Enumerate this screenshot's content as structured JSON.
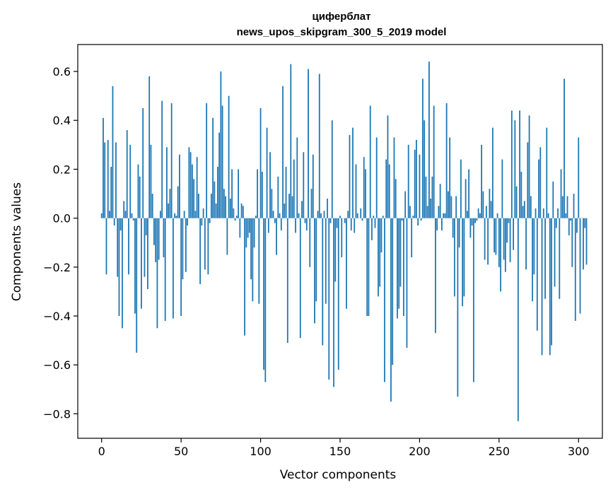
{
  "chart_data": {
    "type": "bar",
    "title": "циферблат",
    "subtitle": "news_upos_skipgram_300_5_2019 model",
    "xlabel": "Vector components",
    "ylabel": "Components values",
    "xlim": [
      -15,
      315
    ],
    "ylim": [
      -0.9,
      0.71
    ],
    "x_ticks": [
      0,
      50,
      100,
      150,
      200,
      250,
      300
    ],
    "x_tick_labels": [
      "0",
      "50",
      "100",
      "150",
      "200",
      "250",
      "300"
    ],
    "y_ticks": [
      -0.8,
      -0.6,
      -0.4,
      -0.2,
      0.0,
      0.2,
      0.4,
      0.6
    ],
    "y_tick_labels": [
      "−0.8",
      "−0.6",
      "−0.4",
      "−0.2",
      "0.0",
      "0.2",
      "0.4",
      "0.6"
    ],
    "bar_color": "#1f77b4",
    "grid": false,
    "values": [
      0.02,
      0.41,
      0.31,
      -0.23,
      0.32,
      0.03,
      0.21,
      0.54,
      -0.03,
      0.31,
      -0.24,
      -0.4,
      -0.05,
      -0.45,
      0.07,
      0.03,
      0.36,
      -0.23,
      0.3,
      0.02,
      -0.01,
      -0.39,
      -0.55,
      0.22,
      0.17,
      -0.37,
      0.45,
      -0.24,
      -0.07,
      -0.29,
      0.58,
      0.3,
      0.1,
      -0.11,
      -0.18,
      -0.45,
      -0.17,
      0.03,
      0.48,
      -0.16,
      -0.42,
      0.29,
      0.06,
      0.12,
      0.47,
      -0.41,
      0.02,
      0.01,
      0.13,
      0.26,
      -0.4,
      -0.25,
      0.03,
      -0.22,
      -0.03,
      0.29,
      0.27,
      0.22,
      0.16,
      0.03,
      0.25,
      0.1,
      -0.27,
      -0.03,
      0.04,
      -0.21,
      0.47,
      -0.23,
      -0.02,
      0.1,
      0.41,
      0.15,
      0.06,
      0.21,
      0.35,
      0.6,
      0.46,
      0.12,
      0.09,
      -0.15,
      0.5,
      0.08,
      0.2,
      0.04,
      -0.01,
      0.01,
      0.2,
      -0.08,
      0.06,
      0.05,
      -0.48,
      -0.12,
      -0.08,
      -0.06,
      -0.25,
      -0.34,
      -0.12,
      0.01,
      0.2,
      -0.35,
      0.45,
      0.19,
      -0.62,
      -0.67,
      0.37,
      -0.06,
      0.27,
      0.12,
      0.03,
      -0.02,
      -0.15,
      0.17,
      0.02,
      -0.05,
      0.54,
      0.06,
      0.21,
      -0.51,
      0.1,
      0.63,
      0.09,
      0.24,
      -0.06,
      0.33,
      0.02,
      -0.49,
      0.07,
      0.27,
      -0.02,
      -0.05,
      0.61,
      -0.2,
      0.12,
      0.26,
      -0.43,
      -0.34,
      0.03,
      0.59,
      0.02,
      -0.52,
      0.03,
      -0.35,
      0.08,
      -0.66,
      -0.02,
      0.4,
      -0.69,
      -0.26,
      -0.04,
      -0.62,
      0.01,
      -0.16,
      0.0,
      -0.02,
      -0.37,
      0.03,
      0.34,
      -0.05,
      0.37,
      -0.06,
      0.22,
      0.02,
      0.0,
      0.04,
      -0.01,
      0.25,
      0.2,
      -0.4,
      -0.4,
      0.46,
      -0.09,
      0.01,
      -0.04,
      0.33,
      -0.32,
      -0.28,
      -0.14,
      0.01,
      -0.67,
      0.24,
      0.42,
      0.22,
      -0.75,
      -0.6,
      0.33,
      0.16,
      -0.41,
      -0.37,
      -0.28,
      -0.01,
      -0.4,
      0.11,
      -0.53,
      0.3,
      0.05,
      -0.16,
      0.01,
      0.28,
      0.32,
      -0.03,
      0.26,
      -0.01,
      0.57,
      0.4,
      0.17,
      0.05,
      0.64,
      0.08,
      0.17,
      0.46,
      -0.47,
      -0.05,
      0.05,
      0.14,
      -0.05,
      0.02,
      0.02,
      0.47,
      0.11,
      0.33,
      0.09,
      -0.08,
      -0.32,
      0.09,
      -0.73,
      -0.12,
      0.24,
      -0.36,
      -0.32,
      0.16,
      0.03,
      0.2,
      -0.08,
      -0.03,
      -0.67,
      -0.02,
      -0.01,
      0.04,
      0.02,
      0.3,
      0.11,
      -0.17,
      0.05,
      -0.19,
      0.12,
      0.07,
      0.37,
      -0.14,
      -0.15,
      0.02,
      -0.2,
      -0.3,
      0.24,
      -0.17,
      -0.22,
      -0.1,
      -0.02,
      -0.18,
      0.44,
      -0.13,
      0.4,
      0.13,
      -0.83,
      0.44,
      0.19,
      0.05,
      0.07,
      -0.21,
      0.31,
      0.42,
      0.09,
      -0.34,
      -0.23,
      0.04,
      -0.46,
      0.24,
      0.29,
      -0.56,
      0.04,
      -0.33,
      0.37,
      0.02,
      -0.56,
      -0.52,
      0.15,
      -0.28,
      -0.04,
      0.04,
      -0.33,
      0.2,
      0.09,
      0.57,
      0.02,
      0.09,
      -0.07,
      -0.01,
      -0.2,
      0.1,
      -0.42,
      -0.06,
      0.33,
      -0.39,
      0.0,
      -0.21,
      -0.04,
      -0.19
    ]
  }
}
